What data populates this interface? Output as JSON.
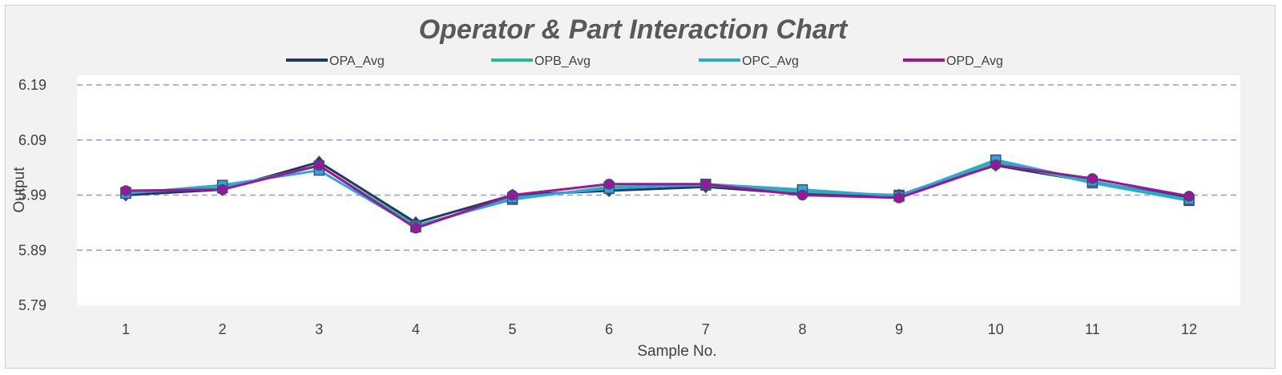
{
  "chart_data": {
    "type": "line",
    "title": "Operator & Part Interaction Chart",
    "xlabel": "Sample No.",
    "ylabel": "Output",
    "categories": [
      "1",
      "2",
      "3",
      "4",
      "5",
      "6",
      "7",
      "8",
      "9",
      "10",
      "11",
      "12"
    ],
    "ylim": [
      5.79,
      6.19
    ],
    "yticks": [
      "6.19",
      "6.09",
      "5.99",
      "5.89",
      "5.79"
    ],
    "grid": "dashed horizontal",
    "legend_position": "top",
    "colors": {
      "plot_background": "#ffffff",
      "chart_background": "#f2f2f2",
      "grid": "#a593c9",
      "marker_outline": "#404a7a"
    },
    "series": [
      {
        "name": "OPA_Avg",
        "color": "#1f3864",
        "marker": "diamond",
        "values": [
          5.99,
          6.0,
          6.05,
          5.94,
          5.99,
          5.998,
          6.005,
          5.992,
          5.99,
          6.044,
          6.014,
          5.985
        ]
      },
      {
        "name": "OPB_Avg",
        "color": "#1fbf94",
        "marker": "square",
        "values": [
          5.995,
          6.003,
          6.043,
          5.935,
          5.982,
          6.005,
          6.008,
          5.996,
          5.99,
          6.05,
          6.012,
          5.98
        ]
      },
      {
        "name": "OPC_Avg",
        "color": "#29a8dc",
        "marker": "square",
        "values": [
          5.993,
          6.008,
          6.035,
          5.932,
          5.985,
          6.002,
          6.01,
          6.0,
          5.988,
          6.054,
          6.015,
          5.982
        ]
      },
      {
        "name": "OPD_Avg",
        "color": "#a0139a",
        "marker": "circle",
        "values": [
          5.998,
          6.0,
          6.044,
          5.93,
          5.99,
          6.01,
          6.01,
          5.99,
          5.985,
          6.045,
          6.02,
          5.988
        ]
      }
    ]
  }
}
